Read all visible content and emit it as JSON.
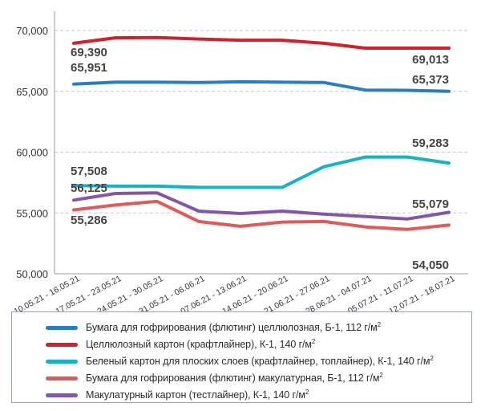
{
  "chart_data": {
    "type": "line",
    "title": "",
    "xlabel": "",
    "ylabel": "",
    "ylim": [
      50000,
      70000
    ],
    "yticks": [
      "50,000",
      "55,000",
      "60,000",
      "65,000",
      "70,000"
    ],
    "ytick_values": [
      50000,
      55000,
      60000,
      65000,
      70000
    ],
    "grid": "horizontal dashed",
    "legend_placement": "bottom",
    "categories": [
      "10.05.21 - 16.05.21",
      "17.05.21 - 23.05.21",
      "24.05.21 - 30.05.21",
      "31.05.21 - 06.06.21",
      "07.06.21 - 13.06.21",
      "14.06.21 - 20.06.21",
      "21.06.21 - 27.06.21",
      "28.06.21 - 04.07.21",
      "05.07.21 - 11.07.21",
      "12.07.21 - 18.07.21"
    ],
    "series": [
      {
        "name": "Бумага для гофрирования (флютинг) целлюлозная, Б-1, 112 г/м",
        "name_sup": "2",
        "color": "#2b7dc2",
        "values": [
          65600,
          65750,
          65750,
          65720,
          65780,
          65750,
          65720,
          65100,
          65080,
          65000
        ],
        "start_label": "65,951",
        "end_label": "65,373"
      },
      {
        "name": "Целлюлозный картон (крафтлайнер), К-1, 140 г/м",
        "name_sup": "2",
        "color": "#d4202a",
        "values": [
          68950,
          69400,
          69420,
          69300,
          69200,
          69200,
          68950,
          68550,
          68550,
          68550
        ],
        "start_label": "69,390",
        "end_label": "69,013"
      },
      {
        "name": "Беленый картон для плоских слоев (крафтлайнер, топлайнер), К-1, 140 г/м",
        "name_sup": "2",
        "color": "#13b5c4",
        "values": [
          57250,
          57200,
          57200,
          57100,
          57100,
          57100,
          58800,
          59600,
          59600,
          59100
        ],
        "start_label": "57,508",
        "end_label": "59,283"
      },
      {
        "name": "Бумага для гофрирования (флютинг) макулатурная, Б-1, 112 г/м",
        "name_sup": "2",
        "color": "#e05a5a",
        "values": [
          55250,
          55650,
          55950,
          54300,
          53900,
          54250,
          54300,
          53850,
          53650,
          54000
        ],
        "start_label": "55,286",
        "end_label": "54,050"
      },
      {
        "name": "Макулатурный картон (тестлайнер), К-1, 140 г/м",
        "name_sup": "2",
        "color": "#8456a8",
        "values": [
          56050,
          56600,
          56650,
          55150,
          54950,
          55150,
          54900,
          54700,
          54500,
          55050
        ],
        "start_label": "56,125",
        "end_label": "55,079"
      }
    ]
  }
}
